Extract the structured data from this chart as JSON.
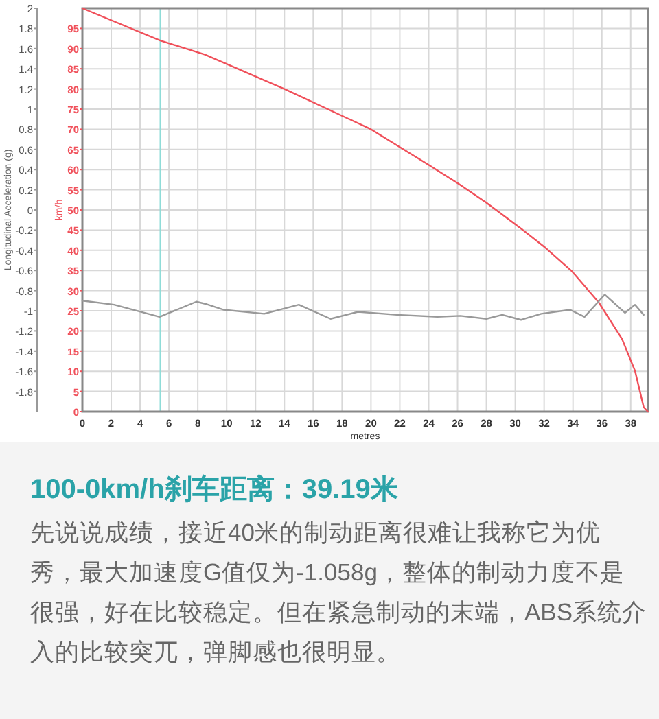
{
  "chart_data": {
    "type": "line",
    "title": "100-0km/h刹车距离：39.19米",
    "annotations": [
      "先说说成绩，接近40米的制动距离很难让我称它为优秀，最大加速度G值仅为-1.058g，整体的制动力度不是很强，好在比较稳定。但在紧急制动的末端，ABS系统介入的比较突兀，弹脚感也很明显。"
    ],
    "xlabel": "metres",
    "ylabel": "Longitudinal Acceleration (g)",
    "y2label": "km/h",
    "xlim": [
      0,
      39.2
    ],
    "xticks": [
      0,
      2,
      4,
      6,
      8,
      10,
      12,
      14,
      16,
      18,
      20,
      22,
      24,
      26,
      28,
      30,
      32,
      34,
      36,
      38
    ],
    "ylim": [
      -2,
      2
    ],
    "yticks": [
      -1.8,
      -1.6,
      -1.4,
      -1.2,
      -1,
      -0.8,
      -0.6,
      -0.4,
      -0.2,
      0,
      0.2,
      0.4,
      0.6,
      0.8,
      1,
      1.2,
      1.4,
      1.6,
      1.8,
      2
    ],
    "y2lim": [
      0,
      100
    ],
    "y2ticks": [
      0,
      5,
      10,
      15,
      20,
      25,
      30,
      35,
      40,
      45,
      50,
      55,
      60,
      65,
      70,
      75,
      80,
      85,
      90,
      95
    ],
    "grid": true,
    "ref_lines": [
      {
        "axis": "x",
        "value": 5.4,
        "color": "#8fdcd8"
      }
    ],
    "series": [
      {
        "color": "#f0505a",
        "axis": "y2",
        "x": [
          0,
          5.4,
          8.5,
          14.0,
          20.0,
          23.9,
          26.1,
          28.0,
          30.5,
          32.1,
          33.9,
          35.8,
          37.4,
          38.3,
          38.9,
          39.19
        ],
        "values": [
          100,
          92,
          88.5,
          80,
          70,
          61.4,
          56.4,
          51.8,
          45.1,
          40.6,
          34.9,
          27,
          18,
          10.1,
          1.1,
          0
        ]
      },
      {
        "color": "#999999",
        "x": [
          0,
          2.2,
          5.35,
          7.9,
          8.5,
          9.8,
          12.6,
          15.0,
          17.2,
          19.1,
          21.8,
          24.6,
          26.2,
          28.0,
          29.1,
          30.4,
          31.8,
          33.8,
          34.8,
          36.2,
          37.6,
          38.3,
          38.9
        ],
        "values": [
          -0.9,
          -0.94,
          -1.06,
          -0.91,
          -0.93,
          -0.99,
          -1.03,
          -0.94,
          -1.08,
          -1.01,
          -1.04,
          -1.06,
          -1.05,
          -1.08,
          -1.04,
          -1.09,
          -1.03,
          -0.99,
          -1.06,
          -0.84,
          -1.02,
          -0.94,
          -1.04
        ]
      }
    ]
  }
}
